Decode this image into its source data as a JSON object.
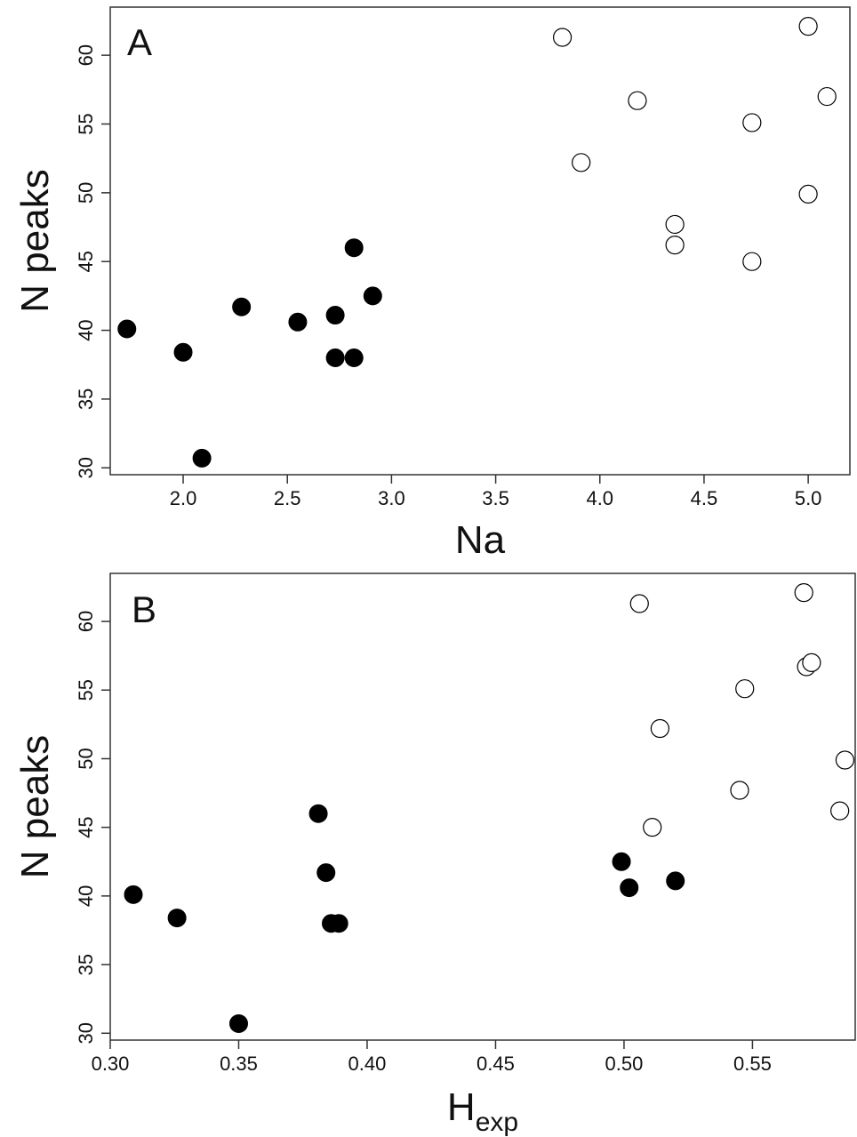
{
  "chart_data": [
    {
      "type": "scatter",
      "panel_label": "A",
      "xlabel": "Na",
      "ylabel": "N peaks",
      "xlim": [
        1.65,
        5.2
      ],
      "ylim": [
        29.5,
        63.5
      ],
      "xticks": [
        "2.0",
        "2.5",
        "3.0",
        "3.5",
        "4.0",
        "4.5",
        "5.0"
      ],
      "yticks": [
        "30",
        "35",
        "40",
        "45",
        "50",
        "55",
        "60"
      ],
      "grid": false,
      "legend": "none",
      "series": [
        {
          "style": "filled",
          "color": "#000000",
          "points": [
            {
              "x": 1.73,
              "y": 40.1
            },
            {
              "x": 2.0,
              "y": 38.4
            },
            {
              "x": 2.09,
              "y": 30.7
            },
            {
              "x": 2.28,
              "y": 41.7
            },
            {
              "x": 2.55,
              "y": 40.6
            },
            {
              "x": 2.73,
              "y": 41.1
            },
            {
              "x": 2.73,
              "y": 38.0
            },
            {
              "x": 2.82,
              "y": 38.0
            },
            {
              "x": 2.82,
              "y": 46.0
            },
            {
              "x": 2.91,
              "y": 42.5
            }
          ]
        },
        {
          "style": "open",
          "color": "#000000",
          "points": [
            {
              "x": 3.82,
              "y": 61.3
            },
            {
              "x": 3.91,
              "y": 52.2
            },
            {
              "x": 4.18,
              "y": 56.7
            },
            {
              "x": 4.36,
              "y": 47.7
            },
            {
              "x": 4.36,
              "y": 46.2
            },
            {
              "x": 4.73,
              "y": 55.1
            },
            {
              "x": 4.73,
              "y": 45.0
            },
            {
              "x": 5.0,
              "y": 62.1
            },
            {
              "x": 5.0,
              "y": 49.9
            },
            {
              "x": 5.09,
              "y": 57.0
            }
          ]
        }
      ]
    },
    {
      "type": "scatter",
      "panel_label": "B",
      "xlabel": "H",
      "xlabel_sub": "exp",
      "ylabel": "N peaks",
      "xlim": [
        0.3,
        0.59
      ],
      "ylim": [
        29.5,
        63.5
      ],
      "xticks": [
        "0.30",
        "0.35",
        "0.40",
        "0.45",
        "0.50",
        "0.55"
      ],
      "yticks": [
        "30",
        "35",
        "40",
        "45",
        "50",
        "55",
        "60"
      ],
      "grid": false,
      "legend": "none",
      "series": [
        {
          "style": "filled",
          "color": "#000000",
          "points": [
            {
              "x": 0.309,
              "y": 40.1
            },
            {
              "x": 0.326,
              "y": 38.4
            },
            {
              "x": 0.35,
              "y": 30.7
            },
            {
              "x": 0.381,
              "y": 46.0
            },
            {
              "x": 0.384,
              "y": 41.7
            },
            {
              "x": 0.386,
              "y": 38.0
            },
            {
              "x": 0.389,
              "y": 38.0
            },
            {
              "x": 0.499,
              "y": 42.5
            },
            {
              "x": 0.502,
              "y": 40.6
            },
            {
              "x": 0.52,
              "y": 41.1
            }
          ]
        },
        {
          "style": "open",
          "color": "#000000",
          "points": [
            {
              "x": 0.506,
              "y": 61.3
            },
            {
              "x": 0.511,
              "y": 45.0
            },
            {
              "x": 0.514,
              "y": 52.2
            },
            {
              "x": 0.545,
              "y": 47.7
            },
            {
              "x": 0.547,
              "y": 55.1
            },
            {
              "x": 0.57,
              "y": 62.1
            },
            {
              "x": 0.571,
              "y": 56.7
            },
            {
              "x": 0.573,
              "y": 57.0
            },
            {
              "x": 0.584,
              "y": 46.2
            },
            {
              "x": 0.586,
              "y": 49.9
            }
          ]
        }
      ]
    }
  ]
}
